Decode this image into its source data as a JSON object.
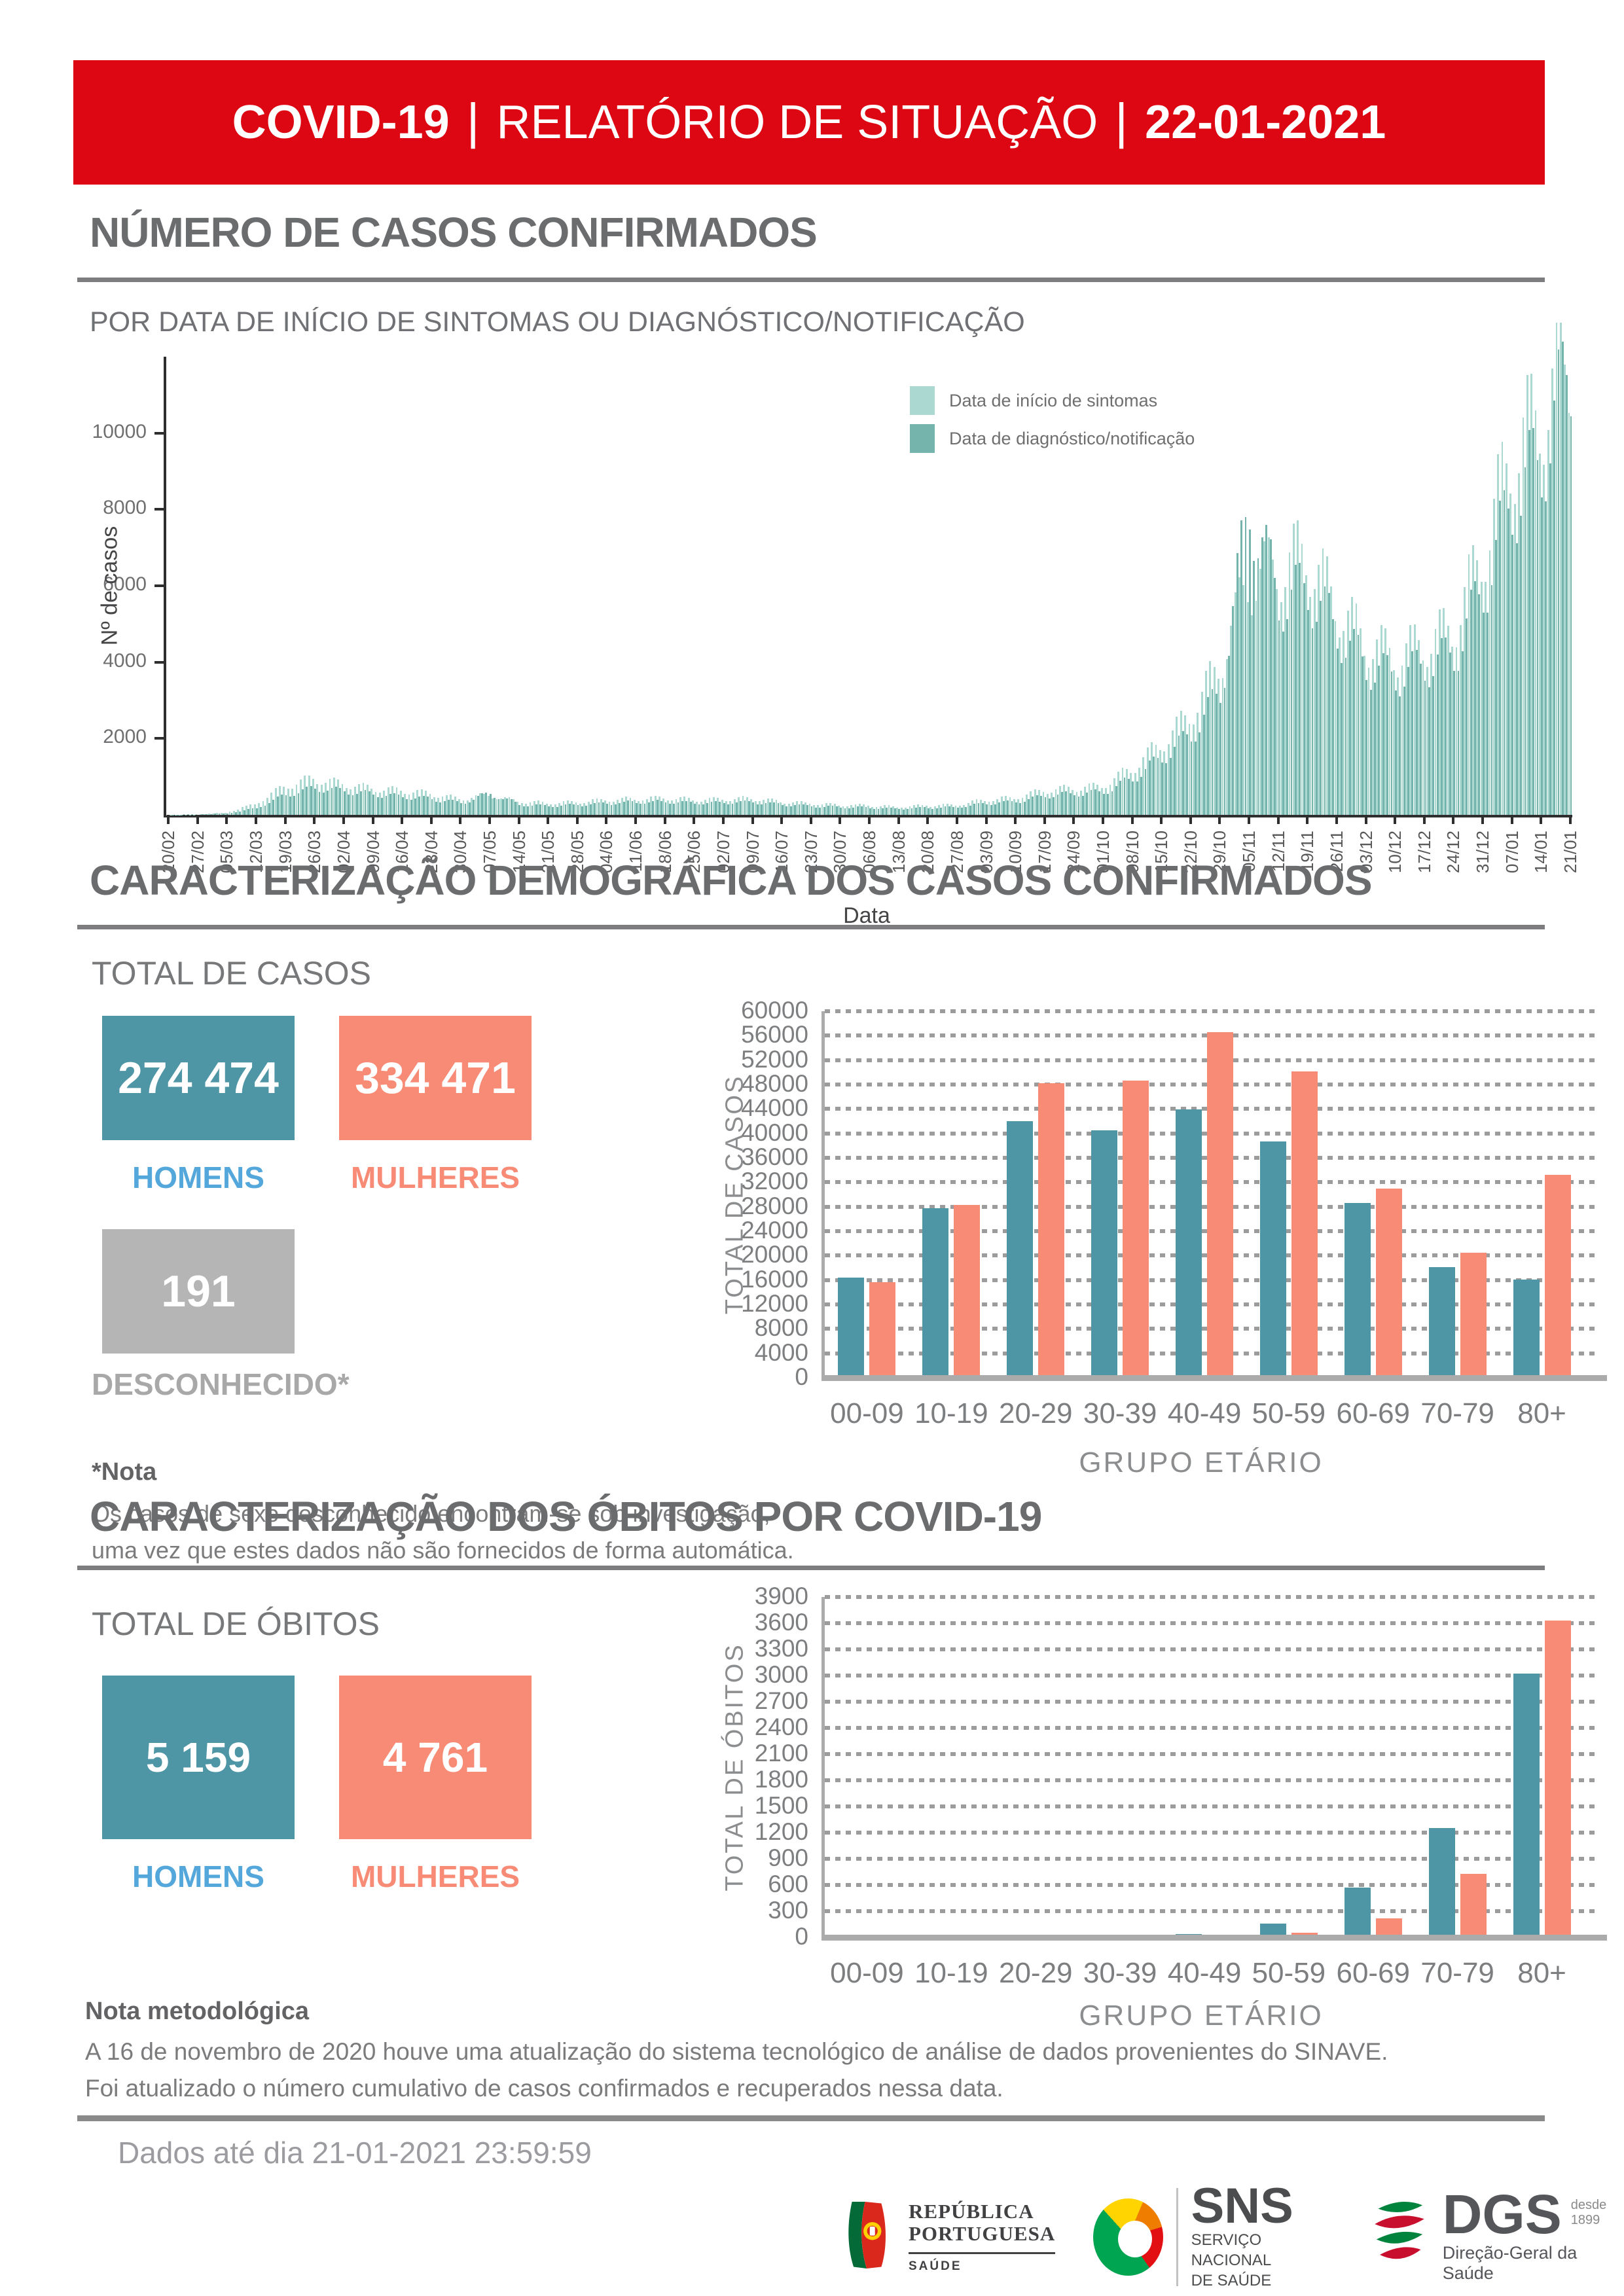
{
  "header": {
    "covid": "COVID-19",
    "sep": "|",
    "report": "RELATÓRIO DE SITUAÇÃO",
    "date": "22-01-2021"
  },
  "section1": {
    "title": "NÚMERO DE CASOS CONFIRMADOS",
    "subtitle": "POR DATA DE INÍCIO DE SINTOMAS OU DIAGNÓSTICO/NOTIFICAÇÃO"
  },
  "section2": {
    "title": "CARACTERIZAÇÃO DEMOGRÁFICA DOS CASOS CONFIRMADOS",
    "heading": "TOTAL DE CASOS",
    "men": {
      "value": "274 474",
      "label": "HOMENS"
    },
    "women": {
      "value": "334 471",
      "label": "MULHERES"
    },
    "unknown": {
      "value": "191",
      "label": "DESCONHECIDO*"
    },
    "note_title": "*Nota",
    "note_lines": [
      "Os casos de sexo desconhecido encontram-se sob investigação,",
      "uma vez que estes dados não são fornecidos de forma automática."
    ]
  },
  "section3": {
    "title": "CARACTERIZAÇÃO DOS ÓBITOS POR COVID-19",
    "heading": "TOTAL DE ÓBITOS",
    "men": {
      "value": "5 159",
      "label": "HOMENS"
    },
    "women": {
      "value": "4 761",
      "label": "MULHERES"
    }
  },
  "footer": {
    "note_title": "Nota metodológica",
    "note_lines": [
      "A 16 de novembro de 2020 houve uma atualização do sistema tecnológico de análise de dados provenientes do SINAVE.",
      "Foi atualizado o número cumulativo de casos confirmados e recuperados nessa data."
    ],
    "data_until": "Dados até dia 21-01-2021 23:59:59",
    "logos": {
      "republica": {
        "line1": "REPÚBLICA",
        "line2": "PORTUGUESA",
        "sub": "SAÚDE"
      },
      "sns": {
        "abbr": "SNS",
        "sub1": "SERVIÇO NACIONAL",
        "sub2": "DE SAÚDE"
      },
      "dgs": {
        "abbr": "DGS",
        "since1": "desde",
        "since2": "1899",
        "sub": "Direção-Geral da Saúde"
      }
    }
  },
  "colors": {
    "banner_bg": "#dc0712",
    "teal_box": "#4e95a5",
    "salmon": "#f78b76",
    "blue_label": "#54a7da",
    "gray_box": "#b5b5b5",
    "gray_label": "#a8a8a8",
    "light_teal": "#abd9d2",
    "dark_teal": "#74b4ac"
  },
  "chart_data": [
    {
      "id": "cases-timeline",
      "type": "bar",
      "title": "",
      "xlabel": "Data",
      "ylabel": "Nº de casos",
      "ylim": [
        0,
        12000
      ],
      "yticks": [
        2000,
        4000,
        6000,
        8000,
        10000
      ],
      "grid": "off",
      "legend_position": "top-right-inside",
      "legend": [
        {
          "label": "Data de início de sintomas",
          "color": "#abd9d2"
        },
        {
          "label": "Data de diagnóstico/notificação",
          "color": "#74b4ac"
        }
      ],
      "resolution_note": "daily bars from 20/02/2020 to 21/01/2021; values below are estimated weekly anchors at the labelled ticks",
      "x": [
        "20/02",
        "27/02",
        "05/03",
        "12/03",
        "19/03",
        "26/03",
        "02/04",
        "09/04",
        "16/04",
        "23/04",
        "30/04",
        "07/05",
        "14/05",
        "21/05",
        "28/05",
        "04/06",
        "11/06",
        "18/06",
        "25/06",
        "02/07",
        "09/07",
        "16/07",
        "23/07",
        "30/07",
        "06/08",
        "13/08",
        "20/08",
        "27/08",
        "03/09",
        "10/09",
        "17/09",
        "24/09",
        "01/10",
        "08/10",
        "15/10",
        "22/10",
        "29/10",
        "05/11",
        "12/11",
        "19/11",
        "26/11",
        "03/12",
        "10/12",
        "17/12",
        "24/12",
        "31/12",
        "07/01",
        "14/01",
        "21/01"
      ],
      "series": [
        {
          "name": "Data de início de sintomas",
          "color": "#abd9d2",
          "weekly_values": [
            5,
            15,
            60,
            280,
            750,
            950,
            820,
            700,
            640,
            560,
            420,
            520,
            360,
            310,
            340,
            390,
            420,
            440,
            400,
            410,
            440,
            350,
            300,
            260,
            250,
            210,
            250,
            260,
            390,
            450,
            640,
            700,
            760,
            1200,
            1850,
            2600,
            3900,
            6100,
            6500,
            6900,
            5600,
            4600,
            4200,
            4500,
            4900,
            6800,
            9400,
            10600,
            11800
          ]
        },
        {
          "name": "Data de diagnóstico/notificação",
          "color": "#74b4ac",
          "weekly_values": [
            2,
            8,
            40,
            180,
            520,
            700,
            620,
            540,
            480,
            420,
            310,
            560,
            270,
            230,
            260,
            300,
            330,
            340,
            310,
            320,
            340,
            270,
            230,
            200,
            190,
            160,
            190,
            200,
            300,
            350,
            500,
            550,
            600,
            950,
            1500,
            2100,
            3200,
            8200,
            5600,
            5900,
            4800,
            3900,
            3600,
            3900,
            4200,
            5900,
            8200,
            9300,
            11700
          ]
        }
      ]
    },
    {
      "id": "cases-by-age",
      "type": "bar",
      "title": "",
      "xlabel": "GRUPO ETÁRIO",
      "ylabel": "TOTAL DE CASOS",
      "ylim": [
        0,
        60000
      ],
      "ytick_step": 4000,
      "grid": "dotted-horizontal",
      "categories": [
        "00-09",
        "10-19",
        "20-29",
        "30-39",
        "40-49",
        "50-59",
        "60-69",
        "70-79",
        "80+"
      ],
      "series": [
        {
          "name": "HOMENS",
          "color": "#4e95a5",
          "values": [
            16400,
            27800,
            42000,
            40500,
            43900,
            38700,
            28600,
            18100,
            16100
          ]
        },
        {
          "name": "MULHERES",
          "color": "#f78b76",
          "values": [
            15700,
            28300,
            48200,
            48700,
            56600,
            50100,
            31000,
            20500,
            33200
          ]
        }
      ]
    },
    {
      "id": "deaths-by-age",
      "type": "bar",
      "title": "",
      "xlabel": "GRUPO ETÁRIO",
      "ylabel": "TOTAL DE ÓBITOS",
      "ylim": [
        0,
        3900
      ],
      "ytick_step": 300,
      "grid": "dotted-horizontal",
      "categories": [
        "00-09",
        "10-19",
        "20-29",
        "30-39",
        "40-49",
        "50-59",
        "60-69",
        "70-79",
        "80+"
      ],
      "series": [
        {
          "name": "HOMENS",
          "color": "#4e95a5",
          "values": [
            1,
            1,
            4,
            14,
            40,
            160,
            570,
            1250,
            3020
          ]
        },
        {
          "name": "MULHERES",
          "color": "#f78b76",
          "values": [
            0,
            0,
            1,
            4,
            12,
            55,
            215,
            730,
            3630
          ]
        }
      ]
    }
  ]
}
